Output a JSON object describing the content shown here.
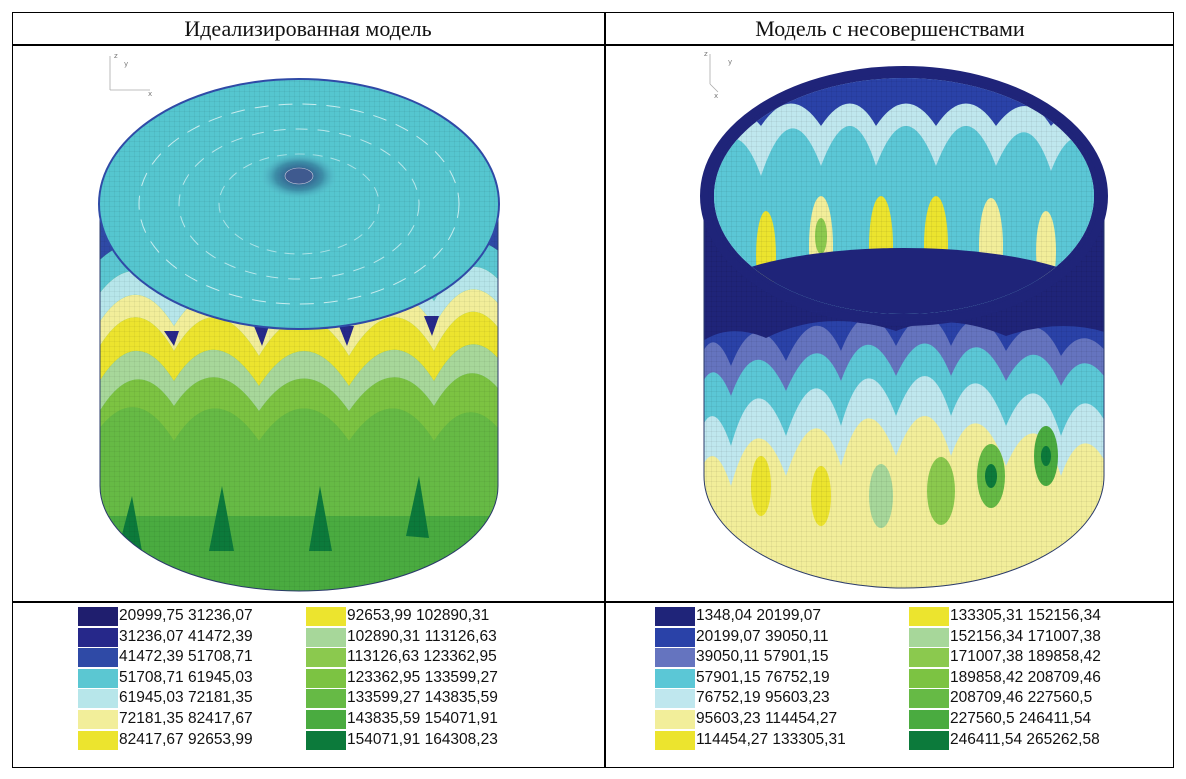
{
  "headers": {
    "left": "Идеализированная модель",
    "right": "Модель с несовершенствами"
  },
  "axes_labels": {
    "z": "z",
    "y": "y",
    "x": "x"
  },
  "colors": {
    "c1": "#1f1e6e",
    "c2": "#26288a",
    "c3": "#2f4aa6",
    "c4": "#5bc7d2",
    "c5": "#b7e6ea",
    "c6": "#f2ee9a",
    "c7": "#ece42e",
    "c8": "#a7d79a",
    "c9": "#8bc94e",
    "c10": "#7cc342",
    "c11": "#66ba45",
    "c12": "#4aab40",
    "c13": "#0c7a3b",
    "r1": "#1f2479",
    "r2": "#2a42a8",
    "r3": "#6574bf",
    "r4": "#5bc7d6",
    "r5": "#bfe7ee"
  },
  "legend_left": {
    "col1": [
      {
        "text": "20999,75   31236,07",
        "color": "#1f1e6e"
      },
      {
        "text": "31236,07   41472,39",
        "color": "#26288a"
      },
      {
        "text": "41472,39   51708,71",
        "color": "#2f4aa6"
      },
      {
        "text": "51708,71   61945,03",
        "color": "#5bc7d2"
      },
      {
        "text": "61945,03   72181,35",
        "color": "#b7e6ea"
      },
      {
        "text": "72181,35   82417,67",
        "color": "#f2ee9a"
      },
      {
        "text": "82417,67   92653,99",
        "color": "#ece42e"
      }
    ],
    "col2": [
      {
        "text": "92653,99   102890,31",
        "color": "#ece42e"
      },
      {
        "text": "102890,31   113126,63",
        "color": "#a7d79a"
      },
      {
        "text": "113126,63   123362,95",
        "color": "#8bc94e"
      },
      {
        "text": "123362,95   133599,27",
        "color": "#7cc342"
      },
      {
        "text": "133599,27   143835,59",
        "color": "#66ba45"
      },
      {
        "text": "143835,59   154071,91",
        "color": "#4aab40"
      },
      {
        "text": "154071,91   164308,23",
        "color": "#0c7a3b"
      }
    ]
  },
  "legend_right": {
    "col1": [
      {
        "text": "1348,04   20199,07",
        "color": "#1f2479"
      },
      {
        "text": "20199,07   39050,11",
        "color": "#2a42a8"
      },
      {
        "text": "39050,11   57901,15",
        "color": "#6574bf"
      },
      {
        "text": "57901,15   76752,19",
        "color": "#5bc7d6"
      },
      {
        "text": "76752,19   95603,23",
        "color": "#bfe7ee"
      },
      {
        "text": "95603,23   114454,27",
        "color": "#f2ee9a"
      },
      {
        "text": "114454,27   133305,31",
        "color": "#ece42e"
      }
    ],
    "col2": [
      {
        "text": "133305,31   152156,34",
        "color": "#ece42e"
      },
      {
        "text": "152156,34   171007,38",
        "color": "#a7d79a"
      },
      {
        "text": "171007,38   189858,42",
        "color": "#8bc94e"
      },
      {
        "text": "189858,42   208709,46",
        "color": "#7cc342"
      },
      {
        "text": "208709,46   227560,5",
        "color": "#66ba45"
      },
      {
        "text": "227560,5   246411,54",
        "color": "#4aab40"
      },
      {
        "text": "246411,54   265262,58",
        "color": "#0c7a3b"
      }
    ]
  }
}
